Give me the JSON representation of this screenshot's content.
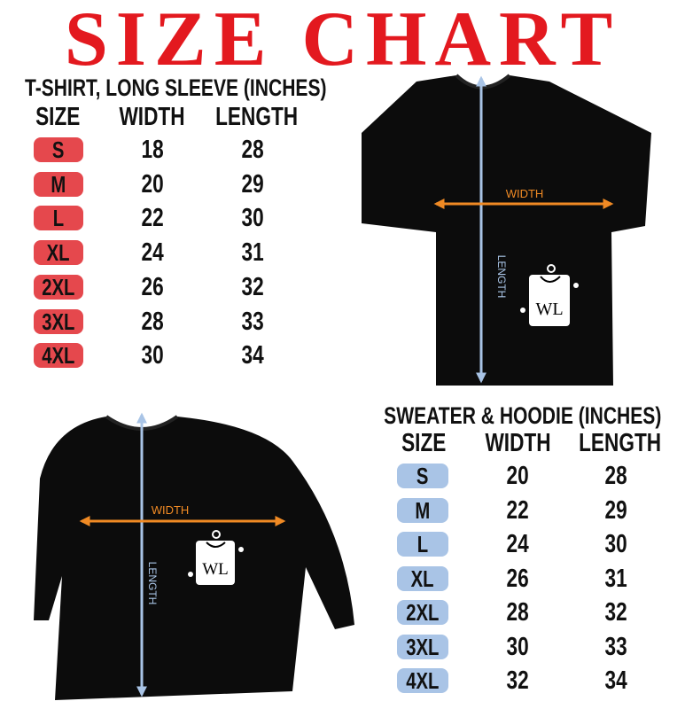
{
  "title": "SIZE CHART",
  "tshirt_table": {
    "title": "T-SHIRT, LONG SLEEVE (INCHES)",
    "headers": [
      "SIZE",
      "WIDTH",
      "LENGTH"
    ],
    "rows": [
      {
        "size": "S",
        "width": "18",
        "length": "28"
      },
      {
        "size": "M",
        "width": "20",
        "length": "29"
      },
      {
        "size": "L",
        "width": "22",
        "length": "30"
      },
      {
        "size": "XL",
        "width": "24",
        "length": "31"
      },
      {
        "size": "2XL",
        "width": "26",
        "length": "32"
      },
      {
        "size": "3XL",
        "width": "28",
        "length": "33"
      },
      {
        "size": "4XL",
        "width": "30",
        "length": "34"
      }
    ],
    "pill_color": "#e5484d"
  },
  "sweater_table": {
    "title": "SWEATER & HOODIE (INCHES)",
    "headers": [
      "SIZE",
      "WIDTH",
      "LENGTH"
    ],
    "rows": [
      {
        "size": "S",
        "width": "20",
        "length": "28"
      },
      {
        "size": "M",
        "width": "22",
        "length": "29"
      },
      {
        "size": "L",
        "width": "24",
        "length": "30"
      },
      {
        "size": "XL",
        "width": "26",
        "length": "31"
      },
      {
        "size": "2XL",
        "width": "28",
        "length": "32"
      },
      {
        "size": "3XL",
        "width": "30",
        "length": "33"
      },
      {
        "size": "4XL",
        "width": "32",
        "length": "34"
      }
    ],
    "pill_color": "#a9c4e6"
  },
  "diagram": {
    "width_label": "WIDTH",
    "length_label": "LENGTH",
    "logo_text": "WL",
    "width_arrow_color": "#f08a24",
    "length_arrow_color": "#a9c4e6"
  }
}
